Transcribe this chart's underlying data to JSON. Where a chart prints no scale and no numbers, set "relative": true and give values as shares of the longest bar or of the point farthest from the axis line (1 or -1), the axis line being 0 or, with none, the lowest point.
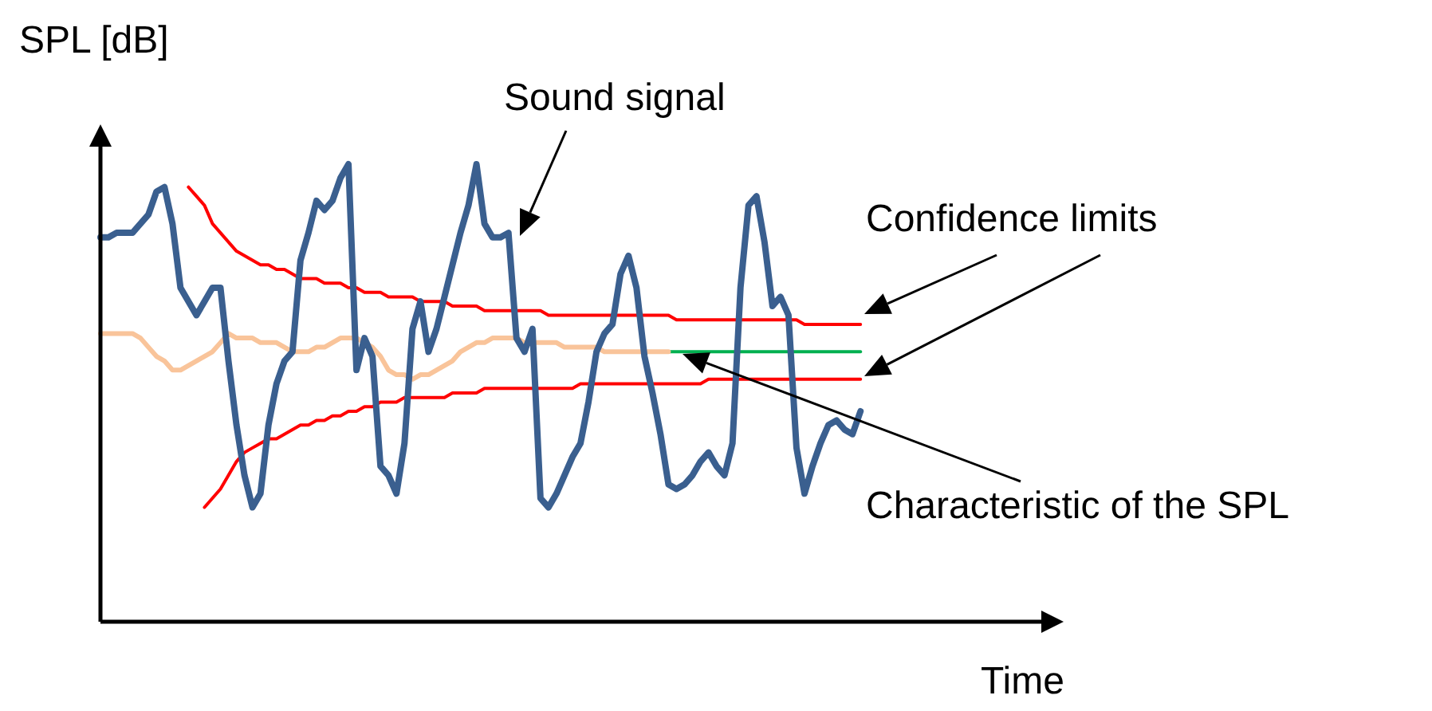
{
  "chart_data": {
    "type": "line",
    "relative": true,
    "xlabel": "Time",
    "ylabel": "SPL [dB]",
    "marker": "none",
    "line_style": "solid",
    "categories": [
      null,
      null,
      null,
      null,
      null,
      null,
      null,
      null,
      null,
      null,
      null,
      null,
      null,
      null,
      null,
      null,
      null,
      null,
      null,
      null,
      null,
      null,
      null,
      null,
      null,
      null,
      null,
      null,
      null,
      null,
      null,
      null,
      null,
      null,
      null,
      null,
      null,
      null,
      null,
      null,
      null,
      null,
      null,
      null,
      null,
      null,
      null,
      null,
      null,
      null,
      null,
      null,
      null,
      null,
      null,
      null,
      null,
      null,
      null,
      null,
      null,
      null,
      null,
      null,
      null,
      null,
      null,
      null,
      null,
      null,
      null,
      null,
      null,
      null,
      null,
      null,
      null,
      null,
      null,
      null,
      null,
      null,
      null,
      null,
      null,
      null,
      null,
      null,
      null,
      null,
      null,
      null,
      null,
      null,
      null,
      null,
      null,
      null,
      null,
      null,
      null,
      null,
      null,
      null,
      null,
      null,
      null,
      null,
      null,
      null,
      null,
      null,
      null,
      null,
      null,
      null,
      null,
      null,
      null
    ],
    "series": [
      {
        "name": "Sound signal",
        "color": "#3a5f8f",
        "values": [
          0.84,
          0.84,
          0.85,
          0.85,
          0.85,
          0.87,
          0.89,
          0.94,
          0.95,
          0.87,
          0.73,
          0.7,
          0.67,
          0.7,
          0.73,
          0.73,
          0.57,
          0.43,
          0.32,
          0.25,
          0.28,
          0.43,
          0.52,
          0.57,
          0.59,
          0.79,
          0.85,
          0.92,
          0.9,
          0.92,
          0.97,
          1,
          0.55,
          0.62,
          0.58,
          0.34,
          0.32,
          0.28,
          0.39,
          0.64,
          0.7,
          0.59,
          0.64,
          0.71,
          0.78,
          0.85,
          0.91,
          1,
          0.87,
          0.84,
          0.84,
          0.85,
          0.62,
          0.59,
          0.64,
          0.27,
          0.25,
          0.28,
          0.32,
          0.36,
          0.39,
          0.48,
          0.59,
          0.63,
          0.65,
          0.76,
          0.8,
          0.73,
          0.58,
          0.5,
          0.41,
          0.3,
          0.29,
          0.3,
          0.32,
          0.35,
          0.37,
          0.34,
          0.32,
          0.39,
          0.73,
          0.91,
          0.93,
          0.83,
          0.69,
          0.71,
          0.67,
          0.38,
          0.28,
          0.34,
          0.39,
          0.43,
          0.44,
          0.42,
          0.41,
          0.46,
          null,
          null,
          null,
          null,
          null,
          null,
          null,
          null,
          null,
          null,
          null,
          null,
          null,
          null,
          null,
          null,
          null,
          null,
          null,
          null,
          null,
          null,
          null
        ]
      },
      {
        "name": "Confidence limits",
        "color": "#ff0000",
        "values": [
          null,
          null,
          null,
          null,
          null,
          null,
          null,
          null,
          null,
          null,
          null,
          0.95,
          0.93,
          0.91,
          0.87,
          0.85,
          0.83,
          0.81,
          0.8,
          0.79,
          0.78,
          0.78,
          0.77,
          0.77,
          0.76,
          0.75,
          0.75,
          0.75,
          0.74,
          0.74,
          0.74,
          0.73,
          0.73,
          0.72,
          0.72,
          0.72,
          0.71,
          0.71,
          0.71,
          0.71,
          0.7,
          0.7,
          0.7,
          0.7,
          0.69,
          0.69,
          0.69,
          0.69,
          0.68,
          0.68,
          0.68,
          0.68,
          0.68,
          0.68,
          0.68,
          0.68,
          0.67,
          0.67,
          0.67,
          0.67,
          0.67,
          0.67,
          0.67,
          0.67,
          0.67,
          0.67,
          0.67,
          0.67,
          0.67,
          0.67,
          0.67,
          0.67,
          0.66,
          0.66,
          0.66,
          0.66,
          0.66,
          0.66,
          0.66,
          0.66,
          0.66,
          0.66,
          0.66,
          0.66,
          0.66,
          0.66,
          0.66,
          0.66,
          0.65,
          0.65,
          0.65,
          0.65,
          0.65,
          0.65,
          0.65,
          0.65,
          null,
          null,
          null,
          null,
          null,
          null,
          null,
          null,
          null,
          null,
          null,
          null,
          null,
          null,
          null,
          null,
          null,
          null,
          null,
          null,
          null,
          null,
          null
        ]
      },
      {
        "color": "#ff0000",
        "values": [
          null,
          null,
          null,
          null,
          null,
          null,
          null,
          null,
          null,
          null,
          null,
          null,
          null,
          0.25,
          0.27,
          0.29,
          0.32,
          0.35,
          0.37,
          0.38,
          0.39,
          0.4,
          0.4,
          0.41,
          0.42,
          0.43,
          0.43,
          0.44,
          0.44,
          0.45,
          0.45,
          0.46,
          0.46,
          0.47,
          0.47,
          0.48,
          0.48,
          0.48,
          0.49,
          0.49,
          0.49,
          0.49,
          0.49,
          0.49,
          0.5,
          0.5,
          0.5,
          0.5,
          0.51,
          0.51,
          0.51,
          0.51,
          0.51,
          0.51,
          0.51,
          0.51,
          0.51,
          0.51,
          0.51,
          0.51,
          0.52,
          0.52,
          0.52,
          0.52,
          0.52,
          0.52,
          0.52,
          0.52,
          0.52,
          0.52,
          0.52,
          0.52,
          0.52,
          0.52,
          0.52,
          0.52,
          0.53,
          0.53,
          0.53,
          0.53,
          0.53,
          0.53,
          0.53,
          0.53,
          0.53,
          0.53,
          0.53,
          0.53,
          0.53,
          0.53,
          0.53,
          0.53,
          0.53,
          0.53,
          0.53,
          0.53,
          null,
          null,
          null,
          null,
          null,
          null,
          null,
          null,
          null,
          null,
          null,
          null,
          null,
          null,
          null,
          null,
          null,
          null,
          null,
          null,
          null,
          null,
          null
        ]
      },
      {
        "color": "#f9c49a",
        "values": [
          0.63,
          0.63,
          0.63,
          0.63,
          0.63,
          0.62,
          0.6,
          0.58,
          0.57,
          0.55,
          0.55,
          0.56,
          0.57,
          0.58,
          0.59,
          0.61,
          0.63,
          0.62,
          0.62,
          0.62,
          0.61,
          0.61,
          0.61,
          0.6,
          0.59,
          0.59,
          0.59,
          0.6,
          0.6,
          0.61,
          0.62,
          0.62,
          0.62,
          0.61,
          0.6,
          0.58,
          0.55,
          0.54,
          0.54,
          0.53,
          0.54,
          0.54,
          0.55,
          0.56,
          0.57,
          0.59,
          0.6,
          0.61,
          0.61,
          0.62,
          0.62,
          0.62,
          0.62,
          0.61,
          0.61,
          0.61,
          0.61,
          0.61,
          0.6,
          0.6,
          0.6,
          0.6,
          0.6,
          0.59,
          0.59,
          0.59,
          0.59,
          0.59,
          0.59,
          0.59,
          0.59,
          0.59,
          null,
          null,
          null,
          null,
          null,
          null,
          null,
          null,
          null,
          null,
          null,
          null,
          null,
          null,
          null,
          null,
          null,
          null,
          null,
          null,
          null,
          null,
          null,
          null,
          null,
          null,
          null,
          null,
          null,
          null,
          null,
          null,
          null,
          null,
          null,
          null,
          null,
          null,
          null,
          null,
          null,
          null,
          null,
          null,
          null,
          null,
          null
        ]
      },
      {
        "name": "Characteristic of the SPL",
        "color": "#00b050",
        "values": [
          null,
          null,
          null,
          null,
          null,
          null,
          null,
          null,
          null,
          null,
          null,
          null,
          null,
          null,
          null,
          null,
          null,
          null,
          null,
          null,
          null,
          null,
          null,
          null,
          null,
          null,
          null,
          null,
          null,
          null,
          null,
          null,
          null,
          null,
          null,
          null,
          null,
          null,
          null,
          null,
          null,
          null,
          null,
          null,
          null,
          null,
          null,
          null,
          null,
          null,
          null,
          null,
          null,
          null,
          null,
          null,
          null,
          null,
          null,
          null,
          null,
          null,
          null,
          null,
          null,
          null,
          null,
          null,
          null,
          null,
          null,
          0.59,
          0.59,
          0.59,
          0.59,
          0.59,
          0.59,
          0.59,
          0.59,
          0.59,
          0.59,
          0.59,
          0.59,
          0.59,
          0.59,
          0.59,
          0.59,
          0.59,
          0.59,
          0.59,
          0.59,
          0.59,
          0.59,
          0.59,
          0.59,
          0.59,
          null,
          null,
          null,
          null,
          null,
          null,
          null,
          null,
          null,
          null,
          null,
          null,
          null,
          null,
          null,
          null,
          null,
          null,
          null,
          null,
          null,
          null,
          null
        ]
      }
    ]
  }
}
